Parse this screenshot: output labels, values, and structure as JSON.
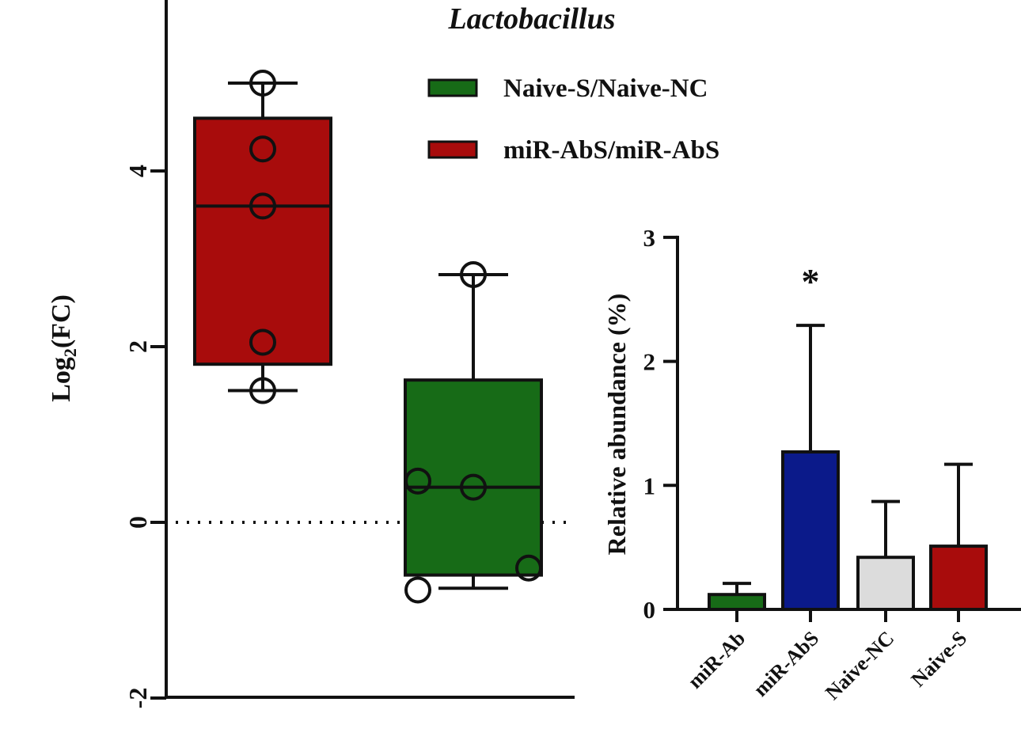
{
  "colors": {
    "red": "#a80c0c",
    "green": "#176b17",
    "navy": "#0b1a8a",
    "lightgray": "#dcdcdc",
    "ink": "#111111"
  },
  "chart_data": [
    {
      "type": "box",
      "title": "Lactobacillus",
      "xlabel": "",
      "ylabel_main": "Log",
      "ylabel_sub": "2",
      "ylabel_tail": "(FC)",
      "ylim": [
        -2,
        6
      ],
      "yticks": [
        -2,
        0,
        2,
        4
      ],
      "ytick_labels": [
        "-2",
        "0",
        "2",
        "4"
      ],
      "reference_line": 0,
      "legend": [
        {
          "name": "Naive-S/Naive-NC",
          "color": "#176b17"
        },
        {
          "name": "miR-AbS/miR-AbS",
          "color": "#a80c0c"
        }
      ],
      "boxes": [
        {
          "name": "miR-AbS/miR-AbS",
          "color": "#a80c0c",
          "min": 1.5,
          "q1": 1.8,
          "median": 3.6,
          "q3": 4.6,
          "max": 5.0,
          "points": [
            5.0,
            4.25,
            3.6,
            2.05,
            1.5
          ],
          "point_jitter": [
            0,
            0,
            0,
            0,
            0
          ]
        },
        {
          "name": "Naive-S/Naive-NC",
          "color": "#176b17",
          "min": -0.75,
          "q1": -0.6,
          "median": 0.4,
          "q3": 1.62,
          "max": 2.82,
          "points": [
            2.82,
            0.47,
            0.4,
            -0.52,
            -0.77
          ],
          "point_jitter": [
            0,
            -1,
            0,
            1,
            -1
          ]
        }
      ]
    },
    {
      "type": "bar",
      "ylabel": "Relative abundance (%)",
      "ylim": [
        0,
        3
      ],
      "yticks": [
        0,
        1,
        2,
        3
      ],
      "ytick_labels": [
        "0",
        "1",
        "2",
        "3"
      ],
      "categories": [
        "miR-Ab",
        "miR-AbS",
        "Naive-NC",
        "Naive-S"
      ],
      "values": [
        0.12,
        1.27,
        0.42,
        0.51
      ],
      "errors": [
        0.09,
        1.02,
        0.45,
        0.66
      ],
      "colors": [
        "#176b17",
        "#0b1a8a",
        "#dcdcdc",
        "#a80c0c"
      ],
      "annotations": [
        {
          "category": "miR-AbS",
          "text": "*"
        }
      ]
    }
  ]
}
